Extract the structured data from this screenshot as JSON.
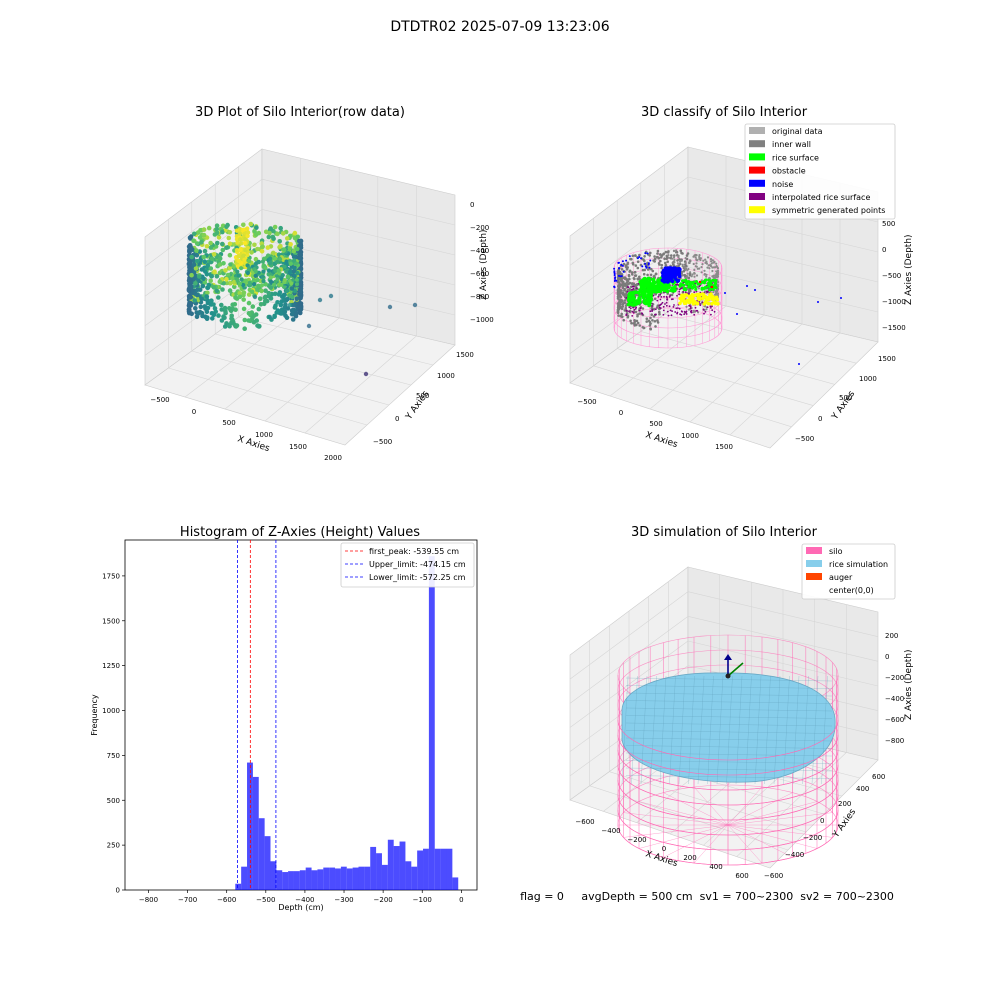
{
  "suptitle": "DTDTR02 2025-07-09 13:23:06",
  "footer": "flag = 0     avgDepth = 500 cm  sv1 = 700~2300  sv2 = 700~2300",
  "chart_data": [
    {
      "type": "scatter",
      "title": "3D Plot of Silo Interior(row data)",
      "xlabel": "X Axies",
      "ylabel": "Y Axies",
      "zlabel": "Z Axies (Depth)",
      "x_ticks": [
        "−500",
        "0",
        "500",
        "1000",
        "1500",
        "2000"
      ],
      "y_ticks": [
        "−500",
        "0",
        "500",
        "1000",
        "1500"
      ],
      "z_ticks": [
        "0",
        "−200",
        "−400",
        "−600",
        "−800",
        "−1000"
      ],
      "xlim": [
        -600,
        2000
      ],
      "ylim": [
        -600,
        1600
      ],
      "zlim": [
        -1100,
        50
      ],
      "colormap": "viridis",
      "description_points": "dense cylindrical cloud of points (silo wall) plus scattered outliers"
    },
    {
      "type": "scatter",
      "title": "3D classify of Silo Interior",
      "xlabel": "X Axies",
      "ylabel": "Y Axies",
      "zlabel": "Z Axies (Depth)",
      "x_ticks": [
        "−500",
        "0",
        "500",
        "1000",
        "1500"
      ],
      "y_ticks": [
        "−500",
        "0",
        "500",
        "1000",
        "1500"
      ],
      "z_ticks": [
        "500",
        "0",
        "−500",
        "−1000",
        "−1500"
      ],
      "legend_position": "top-right",
      "legend": [
        {
          "name": "original data",
          "color": "#b0b0b0"
        },
        {
          "name": "inner wall",
          "color": "#808080"
        },
        {
          "name": "rice surface",
          "color": "#00ff00"
        },
        {
          "name": "obstacle",
          "color": "#ff0000"
        },
        {
          "name": "noise",
          "color": "#0000ff"
        },
        {
          "name": "interpolated rice surface",
          "color": "#800080"
        },
        {
          "name": "symmetric generated points",
          "color": "#ffff00"
        }
      ]
    },
    {
      "type": "bar",
      "title": "Histogram of Z-Axies (Height) Values",
      "xlabel": "Depth (cm)",
      "ylabel": "Frequency",
      "xlim": [
        -860,
        40
      ],
      "ylim": [
        0,
        1950
      ],
      "x_ticks": [
        -800,
        -700,
        -600,
        -500,
        -400,
        -300,
        -200,
        -100,
        0
      ],
      "x_tick_labels": [
        "−800",
        "−700",
        "−600",
        "−500",
        "−400",
        "−300",
        "−200",
        "−100",
        "0"
      ],
      "y_ticks": [
        0,
        250,
        500,
        750,
        1000,
        1250,
        1500,
        1750
      ],
      "y_tick_labels": [
        "0",
        "250",
        "500",
        "750",
        "1000",
        "1250",
        "1500",
        "1750"
      ],
      "bar_color": "#0000ff",
      "bin_width": 15,
      "bins_start": [
        -578,
        -563,
        -548,
        -533,
        -518,
        -503,
        -488,
        -473,
        -458,
        -443,
        -428,
        -413,
        -398,
        -383,
        -368,
        -353,
        -338,
        -323,
        -308,
        -293,
        -278,
        -263,
        -248,
        -233,
        -218,
        -203,
        -188,
        -173,
        -158,
        -143,
        -128,
        -113,
        -98,
        -83,
        -68,
        -53,
        -38,
        -23,
        -8
      ],
      "values": [
        35,
        130,
        710,
        630,
        400,
        300,
        160,
        110,
        100,
        105,
        105,
        110,
        125,
        110,
        115,
        125,
        125,
        120,
        130,
        120,
        125,
        130,
        130,
        240,
        205,
        140,
        280,
        245,
        270,
        160,
        130,
        220,
        230,
        1860,
        230,
        230,
        230,
        70,
        0
      ],
      "lines": [
        {
          "label": "first_peak: -539.55 cm",
          "x": -539.55,
          "color": "#ff0000"
        },
        {
          "label": "Upper_limit: -474.15 cm",
          "x": -474.15,
          "color": "#0000ff"
        },
        {
          "label": "Lower_limit: -572.25 cm",
          "x": -572.25,
          "color": "#0000ff"
        }
      ],
      "legend_position": "top-right"
    },
    {
      "type": "scatter",
      "title": "3D simulation of Silo Interior",
      "xlabel": "X Axies",
      "ylabel": "Y Axies",
      "zlabel": "Z Axies (Depth)",
      "x_ticks": [
        "−600",
        "−400",
        "−200",
        "0",
        "200",
        "400",
        "600"
      ],
      "y_ticks": [
        "600",
        "400",
        "200",
        "0",
        "−200",
        "−400",
        "−600"
      ],
      "z_ticks": [
        "200",
        "0",
        "−200",
        "−400",
        "−600",
        "−800"
      ],
      "legend_position": "top-right",
      "legend": [
        {
          "name": "silo",
          "color": "#ff69b4"
        },
        {
          "name": "rice simulation",
          "color": "#87ceeb"
        },
        {
          "name": "auger",
          "color": "#ff4500"
        },
        {
          "name": "center(0,0)",
          "color": ""
        }
      ]
    }
  ]
}
